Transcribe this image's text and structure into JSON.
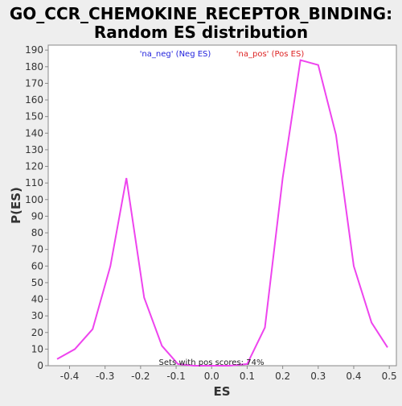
{
  "chart_data": {
    "type": "line",
    "title_line1": "GO_CCR_CHEMOKINE_RECEPTOR_BINDING:",
    "title_line2": "Random ES distribution",
    "xlabel": "ES",
    "ylabel": "P(ES)",
    "xlim": [
      -0.46,
      0.52
    ],
    "ylim": [
      0,
      193
    ],
    "x_ticks": [
      -0.4,
      -0.3,
      -0.2,
      -0.1,
      0.0,
      0.1,
      0.2,
      0.3,
      0.4,
      0.5
    ],
    "x_tick_labels": [
      "-0.4",
      "-0.3",
      "-0.2",
      "-0.1",
      "0.0",
      "0.1",
      "0.2",
      "0.3",
      "0.4",
      "0.5"
    ],
    "y_ticks": [
      0,
      10,
      20,
      30,
      40,
      50,
      60,
      70,
      80,
      90,
      100,
      110,
      120,
      130,
      140,
      150,
      160,
      170,
      180,
      190
    ],
    "grid": false,
    "legend_placement": "top",
    "series": [
      {
        "color": "#ee44ee",
        "x": [
          -0.435,
          -0.385,
          -0.335,
          -0.285,
          -0.24,
          -0.19,
          -0.14,
          -0.095,
          -0.05,
          0.0,
          0.05,
          0.1,
          0.15,
          0.2,
          0.25,
          0.3,
          0.35,
          0.4,
          0.45,
          0.495
        ],
        "y": [
          4,
          10,
          22,
          60,
          113,
          41,
          12,
          1,
          0,
          0,
          0,
          1,
          23,
          113,
          184,
          181,
          139,
          60,
          26,
          11
        ]
      }
    ],
    "legend": [
      {
        "label": "'na_neg' (Neg ES)",
        "color": "#2222dd"
      },
      {
        "label": "'na_pos' (Pos ES)",
        "color": "#dd2222"
      }
    ],
    "annotation": "Sets with pos scores: 74%"
  }
}
